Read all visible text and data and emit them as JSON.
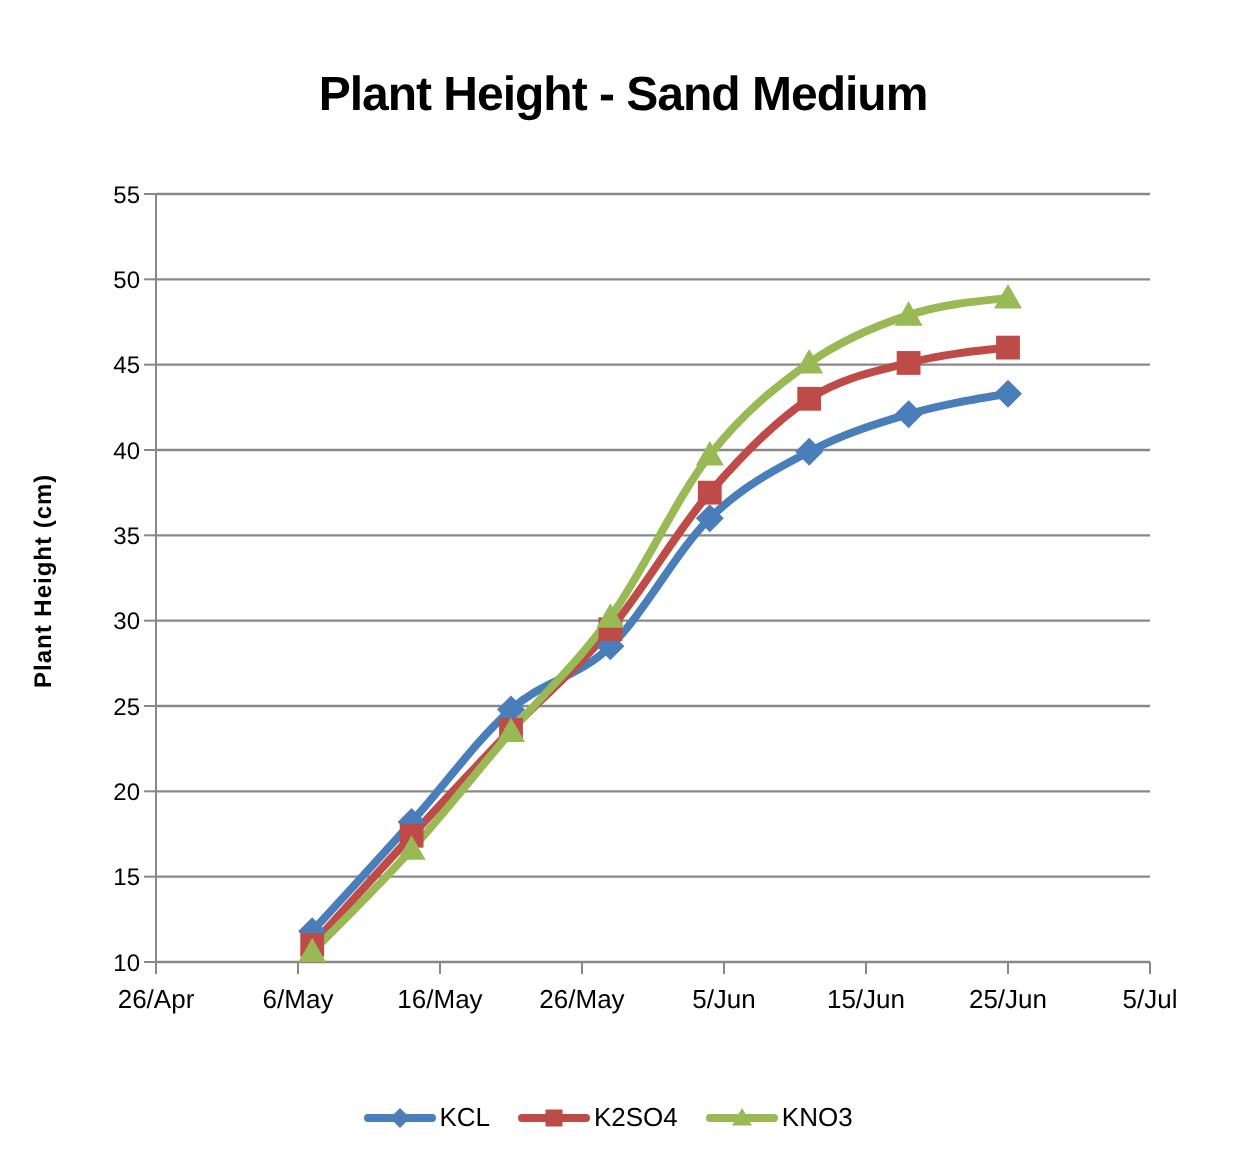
{
  "chart_data": {
    "type": "line",
    "title": "Plant Height - Sand Medium",
    "ylabel": "Plant Height (cm)",
    "x": [
      "--05-07",
      "--05-14",
      "--05-21",
      "--05-28",
      "--06-04",
      "--06-11",
      "--06-18",
      "--06-25"
    ],
    "series": [
      {
        "name": "KCL",
        "color": "#4a7ebb",
        "marker": "diamond",
        "values": [
          11.8,
          18.2,
          24.8,
          28.5,
          36.0,
          39.9,
          42.1,
          43.3
        ]
      },
      {
        "name": "K2SO4",
        "color": "#be4b48",
        "marker": "square",
        "values": [
          11.0,
          17.4,
          23.6,
          29.5,
          37.5,
          43.0,
          45.1,
          46.0
        ]
      },
      {
        "name": "KNO3",
        "color": "#98b954",
        "marker": "triangle",
        "values": [
          10.6,
          16.6,
          23.5,
          30.2,
          39.7,
          45.1,
          47.9,
          48.9
        ]
      }
    ],
    "xlim": [
      "--04-26",
      "--07-05"
    ],
    "xticks": [
      {
        "value": "--04-26",
        "label": "26/Apr"
      },
      {
        "value": "--05-06",
        "label": "6/May"
      },
      {
        "value": "--05-16",
        "label": "16/May"
      },
      {
        "value": "--05-26",
        "label": "26/May"
      },
      {
        "value": "--06-05",
        "label": "5/Jun"
      },
      {
        "value": "--06-15",
        "label": "15/Jun"
      },
      {
        "value": "--06-25",
        "label": "25/Jun"
      },
      {
        "value": "--07-05",
        "label": "5/Jul"
      }
    ],
    "ylim": [
      10,
      55
    ],
    "yticks": [
      10,
      15,
      20,
      25,
      30,
      35,
      40,
      45,
      50,
      55
    ],
    "grid": "y",
    "legend": "bottom",
    "line_style": "solid"
  }
}
